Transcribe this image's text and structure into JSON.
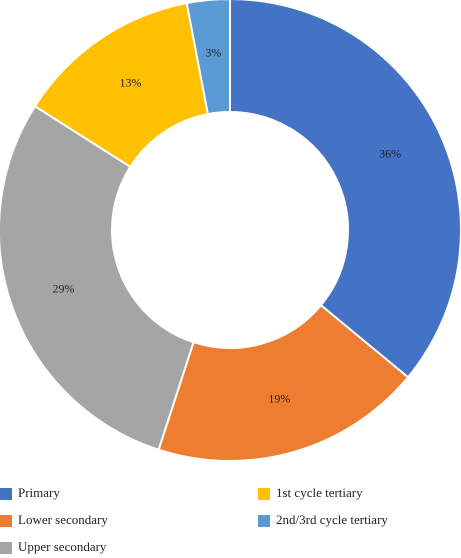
{
  "chart_data": {
    "type": "donut",
    "categories": [
      "Primary",
      "Lower secondary",
      "Upper secondary",
      "1st cycle tertiary",
      "2nd/3rd cycle tertiary"
    ],
    "values": [
      36,
      19,
      29,
      13,
      3
    ],
    "value_labels": [
      "36%",
      "19%",
      "29%",
      "13%",
      "3%"
    ],
    "colors": [
      "#4472c4",
      "#ed7d31",
      "#a5a5a5",
      "#ffc000",
      "#5b9bd5"
    ]
  }
}
